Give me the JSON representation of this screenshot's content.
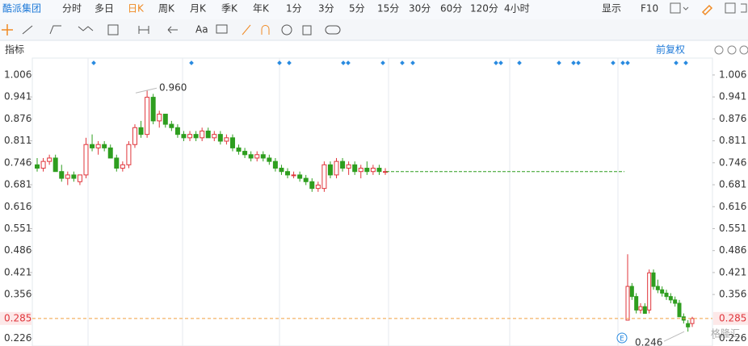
{
  "toolbar": {
    "stock_name": "酷派集团",
    "periods": [
      "分时",
      "多日",
      "日K",
      "周K",
      "月K",
      "季K",
      "年K",
      "1分",
      "3分",
      "5分",
      "15分",
      "30分",
      "60分",
      "120分",
      "4小时"
    ],
    "active_period": "日K",
    "display": "显示",
    "f10": "F10",
    "font_tool": "Aa"
  },
  "indicator_label": "指标",
  "adjust_label": "前复权",
  "watermark": "格隆汇",
  "event_marker": "E",
  "chart_data": {
    "type": "candlestick",
    "ylim": [
      0.2035,
      1.056
    ],
    "yticks": [
      1.006,
      0.941,
      0.876,
      0.811,
      0.746,
      0.681,
      0.616,
      0.551,
      0.486,
      0.421,
      0.356,
      0.226
    ],
    "up_color": "#e0353b",
    "down_color": "#2e9e1f",
    "segments": [
      {
        "candles": [
          [
            0.74,
            0.76,
            0.72,
            0.73
          ],
          [
            0.73,
            0.76,
            0.72,
            0.75
          ],
          [
            0.75,
            0.77,
            0.74,
            0.76
          ],
          [
            0.76,
            0.77,
            0.72,
            0.72
          ],
          [
            0.72,
            0.74,
            0.69,
            0.7
          ],
          [
            0.7,
            0.72,
            0.68,
            0.71
          ],
          [
            0.71,
            0.72,
            0.69,
            0.7
          ],
          [
            0.69,
            0.71,
            0.68,
            0.71
          ],
          [
            0.71,
            0.82,
            0.7,
            0.8
          ],
          [
            0.8,
            0.83,
            0.78,
            0.79
          ],
          [
            0.79,
            0.81,
            0.77,
            0.8
          ],
          [
            0.8,
            0.81,
            0.78,
            0.79
          ],
          [
            0.79,
            0.8,
            0.76,
            0.76
          ],
          [
            0.76,
            0.77,
            0.72,
            0.73
          ],
          [
            0.73,
            0.75,
            0.72,
            0.74
          ],
          [
            0.74,
            0.81,
            0.73,
            0.8
          ],
          [
            0.8,
            0.86,
            0.79,
            0.85
          ],
          [
            0.85,
            0.87,
            0.82,
            0.83
          ],
          [
            0.83,
            0.96,
            0.82,
            0.94
          ],
          [
            0.94,
            0.95,
            0.86,
            0.87
          ],
          [
            0.87,
            0.9,
            0.85,
            0.89
          ],
          [
            0.89,
            0.89,
            0.85,
            0.86
          ],
          [
            0.86,
            0.87,
            0.84,
            0.85
          ],
          [
            0.85,
            0.86,
            0.82,
            0.83
          ],
          [
            0.83,
            0.84,
            0.81,
            0.82
          ],
          [
            0.82,
            0.84,
            0.81,
            0.83
          ],
          [
            0.83,
            0.84,
            0.81,
            0.82
          ],
          [
            0.82,
            0.85,
            0.81,
            0.84
          ],
          [
            0.84,
            0.85,
            0.82,
            0.82
          ],
          [
            0.82,
            0.84,
            0.81,
            0.83
          ],
          [
            0.83,
            0.84,
            0.8,
            0.81
          ],
          [
            0.81,
            0.83,
            0.8,
            0.82
          ],
          [
            0.82,
            0.83,
            0.78,
            0.79
          ],
          [
            0.79,
            0.8,
            0.77,
            0.78
          ],
          [
            0.78,
            0.79,
            0.76,
            0.77
          ],
          [
            0.77,
            0.78,
            0.75,
            0.76
          ],
          [
            0.76,
            0.78,
            0.75,
            0.77
          ],
          [
            0.77,
            0.78,
            0.75,
            0.76
          ],
          [
            0.76,
            0.77,
            0.74,
            0.75
          ],
          [
            0.75,
            0.76,
            0.72,
            0.73
          ],
          [
            0.73,
            0.74,
            0.71,
            0.72
          ],
          [
            0.72,
            0.73,
            0.7,
            0.71
          ],
          [
            0.71,
            0.72,
            0.7,
            0.71
          ],
          [
            0.71,
            0.72,
            0.69,
            0.7
          ],
          [
            0.7,
            0.71,
            0.68,
            0.69
          ],
          [
            0.69,
            0.7,
            0.66,
            0.67
          ],
          [
            0.67,
            0.69,
            0.66,
            0.68
          ],
          [
            0.67,
            0.75,
            0.66,
            0.74
          ],
          [
            0.74,
            0.75,
            0.7,
            0.71
          ],
          [
            0.71,
            0.76,
            0.7,
            0.75
          ],
          [
            0.75,
            0.76,
            0.72,
            0.73
          ],
          [
            0.73,
            0.75,
            0.71,
            0.74
          ],
          [
            0.74,
            0.75,
            0.71,
            0.72
          ],
          [
            0.72,
            0.74,
            0.7,
            0.73
          ],
          [
            0.73,
            0.75,
            0.71,
            0.72
          ],
          [
            0.72,
            0.74,
            0.71,
            0.73
          ],
          [
            0.73,
            0.74,
            0.71,
            0.72
          ],
          [
            0.72,
            0.73,
            0.71,
            0.72
          ]
        ]
      },
      {
        "candles": [
          [
            0.28,
            0.475,
            0.28,
            0.38
          ],
          [
            0.38,
            0.39,
            0.34,
            0.35
          ],
          [
            0.35,
            0.36,
            0.3,
            0.31
          ],
          [
            0.31,
            0.33,
            0.3,
            0.32
          ],
          [
            0.32,
            0.33,
            0.3,
            0.3
          ],
          [
            0.31,
            0.43,
            0.3,
            0.42
          ],
          [
            0.42,
            0.43,
            0.37,
            0.38
          ],
          [
            0.38,
            0.4,
            0.36,
            0.37
          ],
          [
            0.37,
            0.38,
            0.35,
            0.36
          ],
          [
            0.36,
            0.37,
            0.34,
            0.35
          ],
          [
            0.35,
            0.36,
            0.33,
            0.34
          ],
          [
            0.34,
            0.35,
            0.32,
            0.33
          ],
          [
            0.33,
            0.34,
            0.29,
            0.29
          ],
          [
            0.29,
            0.3,
            0.27,
            0.28
          ],
          [
            0.27,
            0.28,
            0.246,
            0.26
          ],
          [
            0.27,
            0.29,
            0.26,
            0.285
          ]
        ]
      }
    ],
    "suspension_line": 0.72,
    "last_price": 0.285,
    "max_label": {
      "value": 0.96,
      "label": "0.960"
    },
    "min_label": 0.246
  }
}
